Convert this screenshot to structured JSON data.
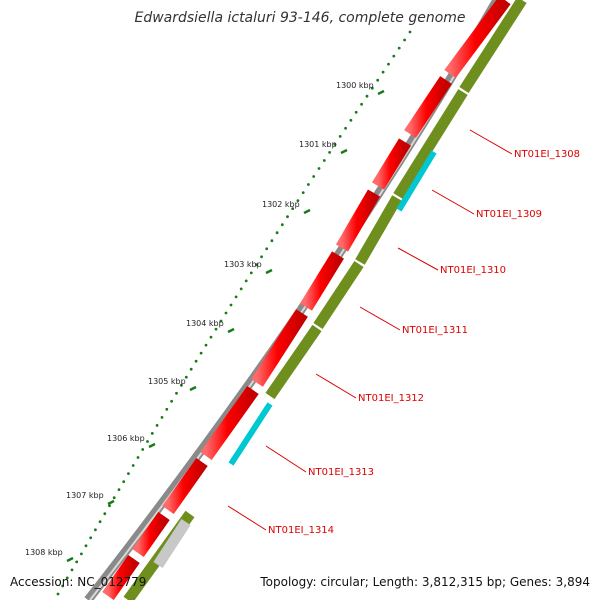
{
  "title": "Edwardsiella ictaluri 93-146, complete genome",
  "footer": {
    "accession": "Accession: NC_012779",
    "topology": "Topology: circular; Length: 3,812,315 bp; Genes: 3,894"
  },
  "colors": {
    "forward_cds": "#ff0000",
    "reverse_cds": "#6e8e1e",
    "rna": "#00c8d2",
    "other": "#c8c8c8",
    "backbone": "#888888",
    "ticks": "#1a7a1a",
    "label_line": "#dd0000"
  },
  "ticks": [
    {
      "label": "1300 kbp"
    },
    {
      "label": "1301 kbp"
    },
    {
      "label": "1302 kbp"
    },
    {
      "label": "1303 kbp"
    },
    {
      "label": "1304 kbp"
    },
    {
      "label": "1305 kbp"
    },
    {
      "label": "1306 kbp"
    },
    {
      "label": "1307 kbp"
    },
    {
      "label": "1308 kbp"
    }
  ],
  "gene_labels": [
    {
      "label": "NT01EI_1308"
    },
    {
      "label": "NT01EI_1309"
    },
    {
      "label": "NT01EI_1310"
    },
    {
      "label": "NT01EI_1311"
    },
    {
      "label": "NT01EI_1312"
    },
    {
      "label": "NT01EI_1313"
    },
    {
      "label": "NT01EI_1314"
    }
  ]
}
